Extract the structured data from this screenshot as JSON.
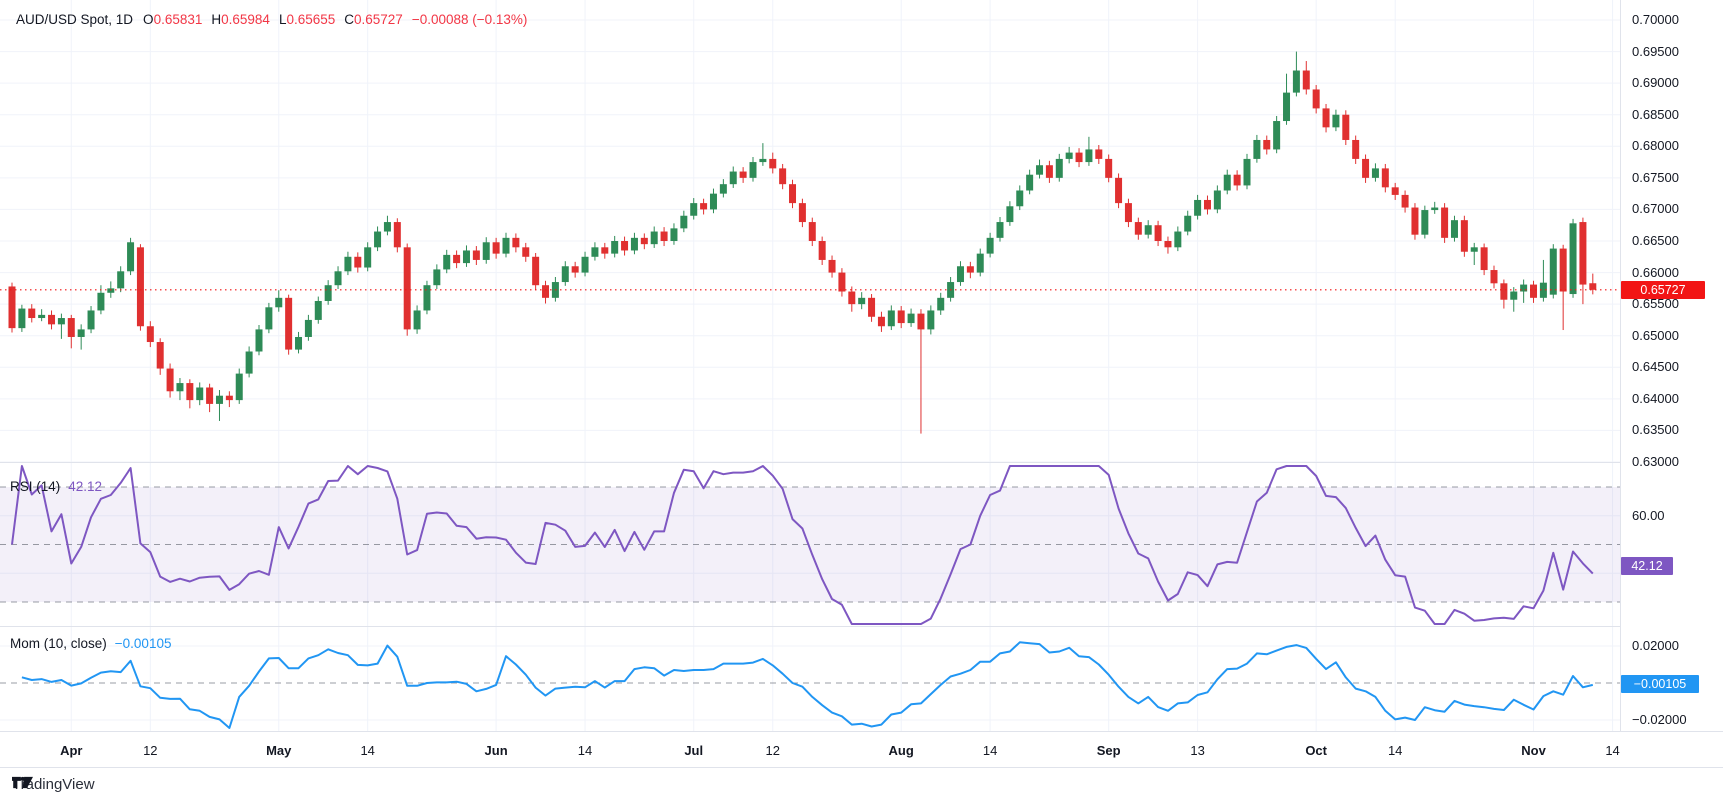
{
  "header": {
    "symbol": "AUD/USD Spot, 1D",
    "ohlc": [
      {
        "k": "O",
        "v": "0.65831"
      },
      {
        "k": "H",
        "v": "0.65984"
      },
      {
        "k": "L",
        "v": "0.65655"
      },
      {
        "k": "C",
        "v": "0.65727"
      }
    ],
    "change": "−0.00088 (−0.13%)"
  },
  "price_scale": {
    "last_badge": "0.65727",
    "max": 0.7,
    "min": 0.63,
    "step": 0.005,
    "decimals": 5
  },
  "panes": {
    "rsi": {
      "label": "RSI (14)",
      "value": "42.12",
      "guides": [
        70,
        50,
        30
      ],
      "axis_labels": [
        {
          "v": 60,
          "label": "60.00"
        }
      ],
      "soft_grid": [
        60,
        40
      ]
    },
    "momentum": {
      "label": "Mom (10, close)",
      "value": "−0.00105",
      "guides": [
        0
      ],
      "axis_labels": [
        {
          "v": 0.02,
          "label": "0.02000"
        },
        {
          "v": -0.02,
          "label": "−0.02000"
        }
      ],
      "soft_grid": [
        0.02,
        -0.02
      ]
    }
  },
  "footer": {
    "brand": "TradingView"
  },
  "colors": {
    "up": "#2e8b57",
    "down": "#e03030",
    "last_price": "#f21515",
    "rsi_line": "#7e57c2",
    "rsi_band": "rgba(126,87,194,0.09)",
    "mom_line": "#2196f3",
    "grid": "#f0f3fa",
    "dash": "#787b86",
    "text": "#131722"
  },
  "chart_data": {
    "type": "candlestick",
    "title": "AUD/USD Spot, 1D",
    "interval": "1D",
    "last_price": 0.65727,
    "y_axis": {
      "min": 0.63,
      "max": 0.7,
      "tick_step": 0.005,
      "format_decimals": 5,
      "grid": true
    },
    "x_axis": {
      "ticks": [
        {
          "i": 6,
          "label": "Apr",
          "major": true
        },
        {
          "i": 14,
          "label": "12",
          "major": false
        },
        {
          "i": 27,
          "label": "May",
          "major": true
        },
        {
          "i": 36,
          "label": "14",
          "major": false
        },
        {
          "i": 49,
          "label": "Jun",
          "major": true
        },
        {
          "i": 58,
          "label": "14",
          "major": false
        },
        {
          "i": 69,
          "label": "Jul",
          "major": true
        },
        {
          "i": 77,
          "label": "12",
          "major": false
        },
        {
          "i": 90,
          "label": "Aug",
          "major": true
        },
        {
          "i": 99,
          "label": "14",
          "major": false
        },
        {
          "i": 111,
          "label": "Sep",
          "major": true
        },
        {
          "i": 120,
          "label": "13",
          "major": false
        },
        {
          "i": 132,
          "label": "Oct",
          "major": true
        },
        {
          "i": 140,
          "label": "14",
          "major": false
        },
        {
          "i": 154,
          "label": "Nov",
          "major": true
        },
        {
          "i": 162,
          "label": "14",
          "major": false
        }
      ]
    },
    "indicators": [
      {
        "name": "RSI",
        "period": 14,
        "value": 42.12,
        "range": [
          0,
          100
        ],
        "guides": [
          70,
          50,
          30
        ]
      },
      {
        "name": "Momentum",
        "period": 10,
        "source": "close",
        "value": -0.00105,
        "guides": [
          0
        ]
      }
    ],
    "candles": [
      [
        0.6578,
        0.6584,
        0.6505,
        0.6512
      ],
      [
        0.6512,
        0.6549,
        0.6506,
        0.6543
      ],
      [
        0.6543,
        0.655,
        0.6521,
        0.6528
      ],
      [
        0.6528,
        0.6542,
        0.6523,
        0.6533
      ],
      [
        0.6533,
        0.654,
        0.651,
        0.6518
      ],
      [
        0.6518,
        0.6535,
        0.6495,
        0.6528
      ],
      [
        0.6528,
        0.6533,
        0.648,
        0.6498
      ],
      [
        0.6498,
        0.6518,
        0.6478,
        0.651
      ],
      [
        0.651,
        0.6547,
        0.6504,
        0.654
      ],
      [
        0.654,
        0.658,
        0.6534,
        0.6568
      ],
      [
        0.6568,
        0.6586,
        0.656,
        0.6575
      ],
      [
        0.6575,
        0.661,
        0.6569,
        0.6602
      ],
      [
        0.6602,
        0.6655,
        0.6596,
        0.6648
      ],
      [
        0.664,
        0.6645,
        0.6508,
        0.6515
      ],
      [
        0.6515,
        0.6523,
        0.6482,
        0.649
      ],
      [
        0.649,
        0.6496,
        0.6438,
        0.6448
      ],
      [
        0.6448,
        0.6456,
        0.6402,
        0.6412
      ],
      [
        0.6412,
        0.6433,
        0.6398,
        0.6425
      ],
      [
        0.6425,
        0.6431,
        0.6385,
        0.6398
      ],
      [
        0.6398,
        0.6426,
        0.639,
        0.6418
      ],
      [
        0.6418,
        0.6424,
        0.6379,
        0.6392
      ],
      [
        0.6392,
        0.6414,
        0.6365,
        0.6405
      ],
      [
        0.6405,
        0.6412,
        0.6387,
        0.6398
      ],
      [
        0.6398,
        0.6448,
        0.6392,
        0.644
      ],
      [
        0.644,
        0.6483,
        0.6434,
        0.6475
      ],
      [
        0.6475,
        0.6517,
        0.6469,
        0.651
      ],
      [
        0.651,
        0.6552,
        0.6504,
        0.6545
      ],
      [
        0.6545,
        0.6572,
        0.6538,
        0.656
      ],
      [
        0.656,
        0.6565,
        0.647,
        0.6478
      ],
      [
        0.6478,
        0.6506,
        0.6472,
        0.6498
      ],
      [
        0.6498,
        0.6533,
        0.6492,
        0.6525
      ],
      [
        0.6525,
        0.6562,
        0.6519,
        0.6555
      ],
      [
        0.6555,
        0.6588,
        0.6549,
        0.658
      ],
      [
        0.658,
        0.661,
        0.6574,
        0.6602
      ],
      [
        0.6602,
        0.6633,
        0.6596,
        0.6625
      ],
      [
        0.6625,
        0.6632,
        0.66,
        0.6608
      ],
      [
        0.6608,
        0.6648,
        0.6602,
        0.664
      ],
      [
        0.664,
        0.6673,
        0.6634,
        0.6665
      ],
      [
        0.6665,
        0.669,
        0.6659,
        0.668
      ],
      [
        0.668,
        0.6686,
        0.6632,
        0.664
      ],
      [
        0.664,
        0.6646,
        0.65,
        0.651
      ],
      [
        0.651,
        0.6548,
        0.6503,
        0.654
      ],
      [
        0.654,
        0.6587,
        0.6534,
        0.658
      ],
      [
        0.658,
        0.6613,
        0.6574,
        0.6605
      ],
      [
        0.6605,
        0.6636,
        0.6599,
        0.6628
      ],
      [
        0.6628,
        0.6635,
        0.6607,
        0.6615
      ],
      [
        0.6615,
        0.6643,
        0.6609,
        0.6635
      ],
      [
        0.6635,
        0.6642,
        0.6612,
        0.662
      ],
      [
        0.662,
        0.6656,
        0.6614,
        0.6648
      ],
      [
        0.6648,
        0.6655,
        0.6622,
        0.663
      ],
      [
        0.663,
        0.6663,
        0.6624,
        0.6655
      ],
      [
        0.6655,
        0.6662,
        0.6632,
        0.664
      ],
      [
        0.664,
        0.6647,
        0.6617,
        0.6625
      ],
      [
        0.6625,
        0.6631,
        0.6572,
        0.658
      ],
      [
        0.658,
        0.6587,
        0.6551,
        0.656
      ],
      [
        0.656,
        0.6593,
        0.6554,
        0.6585
      ],
      [
        0.6585,
        0.6618,
        0.6579,
        0.661
      ],
      [
        0.661,
        0.6617,
        0.6592,
        0.66
      ],
      [
        0.66,
        0.6633,
        0.6594,
        0.6625
      ],
      [
        0.6625,
        0.6648,
        0.6619,
        0.664
      ],
      [
        0.664,
        0.6647,
        0.6622,
        0.663
      ],
      [
        0.663,
        0.6658,
        0.6624,
        0.665
      ],
      [
        0.665,
        0.6657,
        0.6627,
        0.6635
      ],
      [
        0.6635,
        0.6663,
        0.6629,
        0.6655
      ],
      [
        0.6655,
        0.6662,
        0.6637,
        0.6645
      ],
      [
        0.6645,
        0.6673,
        0.6639,
        0.6665
      ],
      [
        0.6665,
        0.6672,
        0.6642,
        0.665
      ],
      [
        0.665,
        0.6678,
        0.6644,
        0.667
      ],
      [
        0.667,
        0.6698,
        0.6664,
        0.669
      ],
      [
        0.669,
        0.6718,
        0.6684,
        0.671
      ],
      [
        0.671,
        0.6717,
        0.6692,
        0.67
      ],
      [
        0.67,
        0.6733,
        0.6694,
        0.6725
      ],
      [
        0.6725,
        0.6748,
        0.6719,
        0.674
      ],
      [
        0.674,
        0.6768,
        0.6734,
        0.676
      ],
      [
        0.676,
        0.6767,
        0.6742,
        0.675
      ],
      [
        0.675,
        0.6783,
        0.6744,
        0.6775
      ],
      [
        0.6775,
        0.6805,
        0.6769,
        0.678
      ],
      [
        0.678,
        0.679,
        0.6757,
        0.6765
      ],
      [
        0.6765,
        0.6772,
        0.6732,
        0.674
      ],
      [
        0.674,
        0.6747,
        0.6702,
        0.671
      ],
      [
        0.671,
        0.6717,
        0.6672,
        0.668
      ],
      [
        0.668,
        0.6687,
        0.6642,
        0.665
      ],
      [
        0.665,
        0.6657,
        0.6612,
        0.662
      ],
      [
        0.662,
        0.6627,
        0.6592,
        0.66
      ],
      [
        0.66,
        0.6607,
        0.6562,
        0.657
      ],
      [
        0.657,
        0.6578,
        0.6538,
        0.655
      ],
      [
        0.655,
        0.6569,
        0.6542,
        0.656
      ],
      [
        0.656,
        0.6566,
        0.6522,
        0.653
      ],
      [
        0.653,
        0.6538,
        0.6506,
        0.6515
      ],
      [
        0.6515,
        0.6548,
        0.6509,
        0.654
      ],
      [
        0.654,
        0.6547,
        0.6512,
        0.652
      ],
      [
        0.652,
        0.6543,
        0.6514,
        0.6535
      ],
      [
        0.6535,
        0.6542,
        0.6345,
        0.651
      ],
      [
        0.651,
        0.6548,
        0.6502,
        0.654
      ],
      [
        0.654,
        0.6568,
        0.6533,
        0.656
      ],
      [
        0.656,
        0.6593,
        0.6554,
        0.6585
      ],
      [
        0.6585,
        0.6618,
        0.6579,
        0.661
      ],
      [
        0.661,
        0.6617,
        0.6591,
        0.66
      ],
      [
        0.66,
        0.6638,
        0.6594,
        0.663
      ],
      [
        0.663,
        0.6663,
        0.6624,
        0.6655
      ],
      [
        0.6655,
        0.6688,
        0.6649,
        0.668
      ],
      [
        0.668,
        0.6713,
        0.6674,
        0.6705
      ],
      [
        0.6705,
        0.6738,
        0.6699,
        0.673
      ],
      [
        0.673,
        0.6763,
        0.6724,
        0.6755
      ],
      [
        0.6755,
        0.6779,
        0.6749,
        0.677
      ],
      [
        0.677,
        0.6777,
        0.6742,
        0.675
      ],
      [
        0.675,
        0.6788,
        0.6744,
        0.678
      ],
      [
        0.678,
        0.6799,
        0.6773,
        0.679
      ],
      [
        0.679,
        0.6797,
        0.6767,
        0.6775
      ],
      [
        0.6775,
        0.6815,
        0.6769,
        0.6795
      ],
      [
        0.6795,
        0.6802,
        0.6772,
        0.678
      ],
      [
        0.678,
        0.6787,
        0.6743,
        0.675
      ],
      [
        0.675,
        0.6757,
        0.6702,
        0.671
      ],
      [
        0.671,
        0.6717,
        0.6672,
        0.668
      ],
      [
        0.668,
        0.6687,
        0.6652,
        0.666
      ],
      [
        0.666,
        0.6683,
        0.6654,
        0.6675
      ],
      [
        0.6675,
        0.6682,
        0.6642,
        0.665
      ],
      [
        0.665,
        0.6657,
        0.663,
        0.664
      ],
      [
        0.664,
        0.6673,
        0.6634,
        0.6665
      ],
      [
        0.6665,
        0.6698,
        0.6659,
        0.669
      ],
      [
        0.669,
        0.6723,
        0.6684,
        0.6715
      ],
      [
        0.6715,
        0.6722,
        0.6692,
        0.67
      ],
      [
        0.67,
        0.6738,
        0.6694,
        0.673
      ],
      [
        0.673,
        0.6763,
        0.6724,
        0.6755
      ],
      [
        0.6755,
        0.6762,
        0.673,
        0.6738
      ],
      [
        0.6738,
        0.6788,
        0.6732,
        0.678
      ],
      [
        0.678,
        0.6818,
        0.6774,
        0.681
      ],
      [
        0.681,
        0.6817,
        0.6787,
        0.6795
      ],
      [
        0.6795,
        0.6848,
        0.6789,
        0.684
      ],
      [
        0.684,
        0.6915,
        0.6834,
        0.6885
      ],
      [
        0.6885,
        0.695,
        0.6879,
        0.692
      ],
      [
        0.692,
        0.6935,
        0.6882,
        0.689
      ],
      [
        0.689,
        0.6897,
        0.6852,
        0.686
      ],
      [
        0.686,
        0.6867,
        0.6822,
        0.683
      ],
      [
        0.683,
        0.6858,
        0.6824,
        0.685
      ],
      [
        0.685,
        0.6857,
        0.6802,
        0.681
      ],
      [
        0.681,
        0.6817,
        0.6772,
        0.678
      ],
      [
        0.678,
        0.6787,
        0.6742,
        0.675
      ],
      [
        0.675,
        0.6773,
        0.6744,
        0.6765
      ],
      [
        0.6765,
        0.6772,
        0.6727,
        0.6735
      ],
      [
        0.6735,
        0.6742,
        0.6715,
        0.6723
      ],
      [
        0.6723,
        0.673,
        0.6695,
        0.6703
      ],
      [
        0.6703,
        0.671,
        0.6652,
        0.666
      ],
      [
        0.666,
        0.6706,
        0.6654,
        0.6699
      ],
      [
        0.6699,
        0.6712,
        0.6693,
        0.6703
      ],
      [
        0.6703,
        0.671,
        0.6647,
        0.6655
      ],
      [
        0.6655,
        0.669,
        0.6649,
        0.6683
      ],
      [
        0.6683,
        0.669,
        0.6625,
        0.6633
      ],
      [
        0.6633,
        0.6647,
        0.6612,
        0.664
      ],
      [
        0.664,
        0.6646,
        0.6596,
        0.6604
      ],
      [
        0.6604,
        0.6611,
        0.6575,
        0.6583
      ],
      [
        0.6583,
        0.6589,
        0.6543,
        0.6557
      ],
      [
        0.6557,
        0.6577,
        0.6538,
        0.657
      ],
      [
        0.657,
        0.6589,
        0.6552,
        0.6581
      ],
      [
        0.6581,
        0.6587,
        0.6552,
        0.656
      ],
      [
        0.656,
        0.662,
        0.6554,
        0.6584
      ],
      [
        0.6565,
        0.6645,
        0.6559,
        0.6638
      ],
      [
        0.6638,
        0.6644,
        0.6509,
        0.657
      ],
      [
        0.6566,
        0.6685,
        0.656,
        0.6678
      ],
      [
        0.668,
        0.6687,
        0.655,
        0.6581
      ],
      [
        0.65831,
        0.65984,
        0.65655,
        0.65727
      ]
    ]
  }
}
